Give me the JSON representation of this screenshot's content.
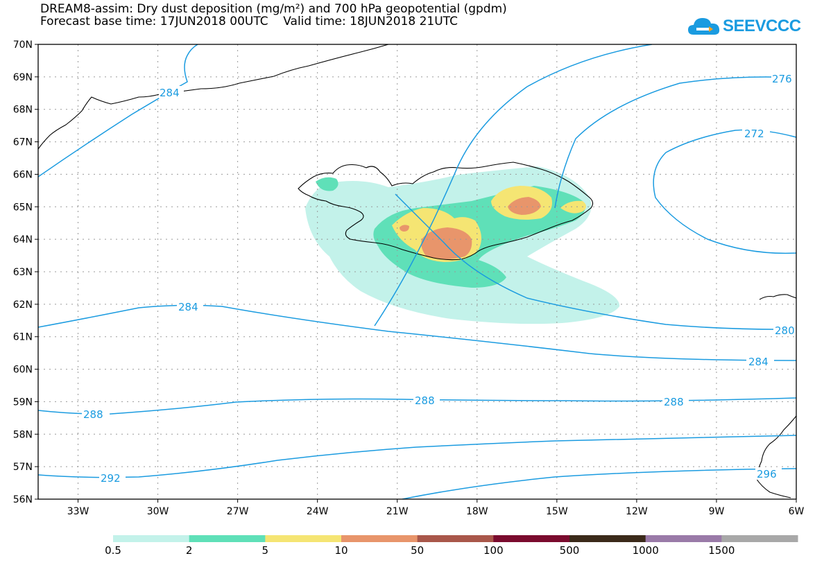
{
  "title": {
    "line1": "DREAM8-assim: Dry dust deposition (mg/m²) and 700 hPa geopotential (gpdm)",
    "line2": "Forecast base time: 17JUN2018 00UTC    Valid time: 18JUN2018 21UTC"
  },
  "logo": {
    "text": "SEEVCCC",
    "icon": "cloud-icon",
    "color": "#1a9be0"
  },
  "axes": {
    "lat_labels": [
      "70N",
      "69N",
      "68N",
      "67N",
      "66N",
      "65N",
      "64N",
      "63N",
      "62N",
      "61N",
      "60N",
      "59N",
      "58N",
      "57N",
      "56N"
    ],
    "lon_labels": [
      "33W",
      "30W",
      "27W",
      "24W",
      "21W",
      "18W",
      "15W",
      "12W",
      "9W",
      "6W"
    ],
    "lat_range": [
      56,
      70
    ],
    "lon_range": [
      -34.5,
      -6
    ]
  },
  "contours": {
    "color": "#1a9be0",
    "labels": [
      "284",
      "276",
      "272",
      "284",
      "280",
      "284",
      "288",
      "288",
      "288",
      "292",
      "296"
    ]
  },
  "legend": {
    "labels": [
      "0.5",
      "2",
      "5",
      "10",
      "50",
      "100",
      "500",
      "1000",
      "1500"
    ],
    "colors": [
      "#c3f2ea",
      "#5fe0b8",
      "#f5e573",
      "#e8956b",
      "#a9574a",
      "#7a0b2e",
      "#3b2a1a",
      "#9a7aa8",
      "#a8a8a8"
    ]
  }
}
